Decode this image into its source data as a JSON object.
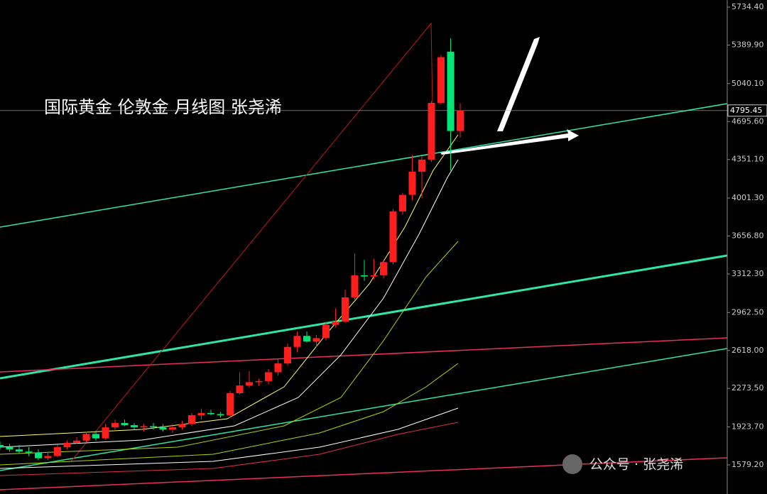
{
  "chart_data": {
    "type": "candlestick",
    "title": "国际黄金 伦敦金  月线图 张尧浠",
    "watermark": "公众号 · 张尧浠",
    "up_color": "#ff1e1e",
    "down_color": "#00e676",
    "open": [
      1760,
      1740,
      1720,
      1700,
      1690,
      1640,
      1660,
      1740,
      1780,
      1800,
      1860,
      1820,
      1920,
      1960,
      1940,
      1920,
      1930,
      1920,
      1900,
      1920,
      1950,
      2030,
      2050,
      2040,
      2030,
      2230,
      2300,
      2330,
      2340,
      2420,
      2500,
      2650,
      2750,
      2700,
      2730,
      2850,
      2880,
      3100,
      3300,
      3290,
      3300,
      3420,
      3880,
      4030,
      4240,
      4350,
      4865,
      5330,
      4610
    ],
    "high": [
      1790,
      1770,
      1760,
      1740,
      1720,
      1700,
      1760,
      1800,
      1830,
      1880,
      1880,
      1950,
      1990,
      1990,
      1960,
      1950,
      1960,
      1950,
      1950,
      1980,
      2050,
      2090,
      2080,
      2060,
      2250,
      2420,
      2430,
      2360,
      2450,
      2540,
      2680,
      2790,
      2790,
      2760,
      2880,
      3000,
      3170,
      3500,
      3440,
      3450,
      3440,
      3900,
      4050,
      4390,
      4380,
      4880,
      5300,
      5450,
      4860
    ],
    "low": [
      1720,
      1700,
      1680,
      1660,
      1620,
      1620,
      1650,
      1720,
      1770,
      1780,
      1800,
      1810,
      1900,
      1930,
      1900,
      1880,
      1900,
      1880,
      1870,
      1900,
      1930,
      1990,
      2030,
      2010,
      2010,
      2220,
      2280,
      2300,
      2310,
      2390,
      2480,
      2600,
      2690,
      2650,
      2710,
      2830,
      2870,
      3080,
      3250,
      3260,
      3270,
      3400,
      3850,
      3980,
      4000,
      4330,
      4850,
      4250,
      4550
    ],
    "close": [
      1740,
      1720,
      1700,
      1690,
      1640,
      1660,
      1740,
      1780,
      1800,
      1860,
      1820,
      1920,
      1960,
      1940,
      1920,
      1930,
      1920,
      1900,
      1920,
      1950,
      2030,
      2050,
      2040,
      2030,
      2230,
      2300,
      2330,
      2340,
      2420,
      2500,
      2650,
      2750,
      2700,
      2730,
      2850,
      2880,
      3100,
      3300,
      3290,
      3300,
      3420,
      3880,
      4030,
      4240,
      4350,
      4865,
      5280,
      4610,
      4795.45
    ],
    "last_price": {
      "value": 4795.45,
      "label": "4795.45"
    },
    "ylim": [
      1315,
      5799
    ],
    "yticks": [
      {
        "value": 5734.4,
        "label": "5734.40"
      },
      {
        "value": 5389.9,
        "label": "5389.90"
      },
      {
        "value": 5040.1,
        "label": "5040.10"
      },
      {
        "value": 4695.6,
        "label": "4695.60"
      },
      {
        "value": 4351.1,
        "label": "4351.10"
      },
      {
        "value": 4001.3,
        "label": "4001.30"
      },
      {
        "value": 3656.8,
        "label": "3656.80"
      },
      {
        "value": 3312.3,
        "label": "3312.30"
      },
      {
        "value": 2962.5,
        "label": "2962.50"
      },
      {
        "value": 2618,
        "label": "2618.00"
      },
      {
        "value": 2273.5,
        "label": "2273.50"
      },
      {
        "value": 1923.7,
        "label": "1923.70"
      },
      {
        "value": 1579.2,
        "label": "1579.20"
      }
    ]
  }
}
